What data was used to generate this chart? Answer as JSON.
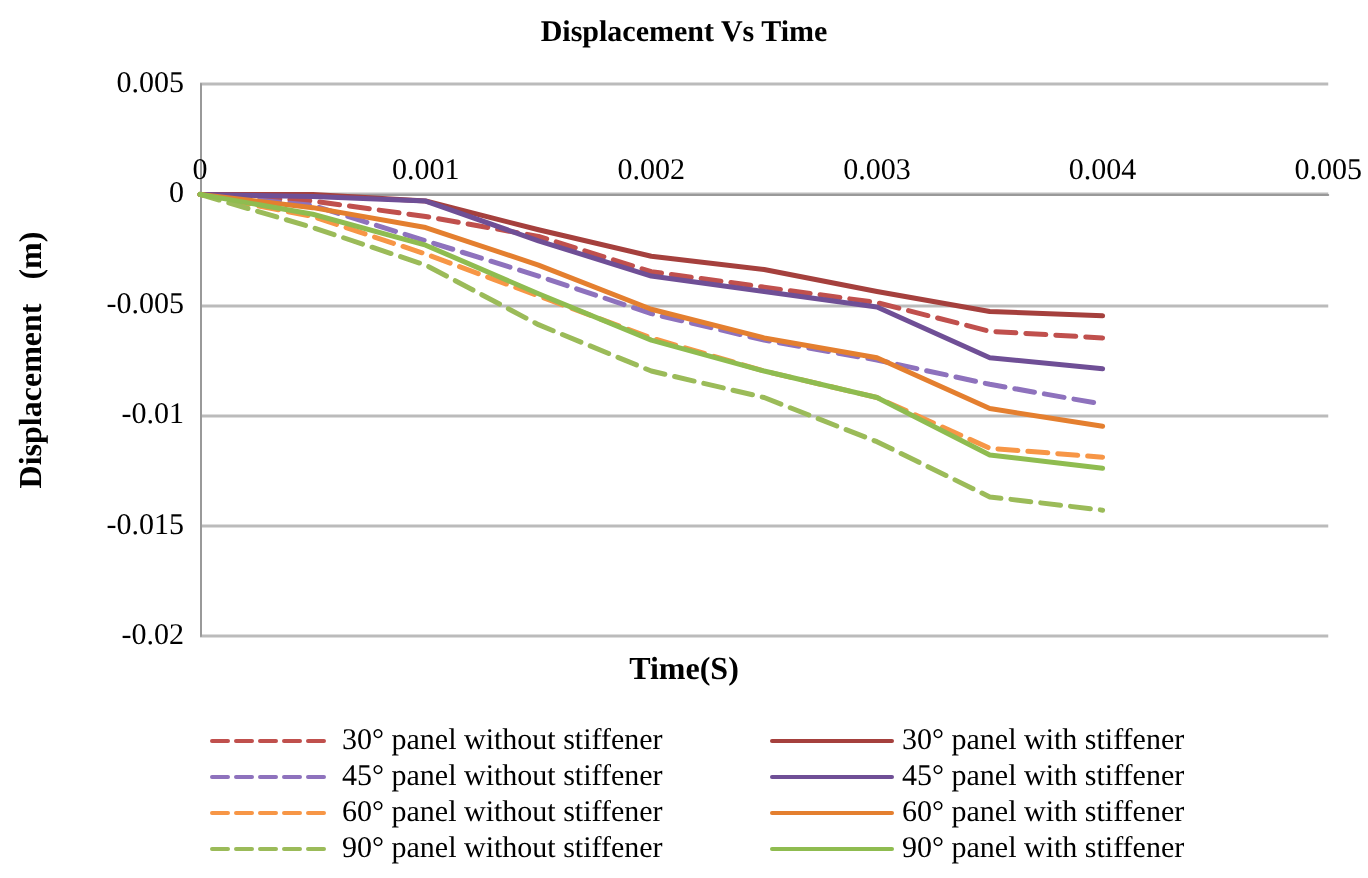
{
  "chart_data": {
    "type": "line",
    "title": "Displacement Vs Time",
    "xlabel": "Time(S)",
    "ylabel": "Displacement   (m)",
    "x": [
      0,
      0.0005,
      0.001,
      0.0015,
      0.002,
      0.0025,
      0.003,
      0.0035,
      0.004
    ],
    "xlim": [
      0,
      0.005
    ],
    "xticks": [
      0,
      0.001,
      0.002,
      0.003,
      0.004,
      0.005
    ],
    "ylim": [
      -0.02,
      0.005
    ],
    "yticks": [
      -0.02,
      -0.015,
      -0.01,
      -0.005,
      0,
      0.005
    ],
    "grid": "y",
    "legend": "bottom",
    "marker": "none",
    "series": [
      {
        "name": "30° panel without stiffener",
        "color": "#c0504d",
        "line_style": "dashed",
        "values": [
          0,
          -0.0003,
          -0.001,
          -0.0019,
          -0.0035,
          -0.0042,
          -0.0049,
          -0.0062,
          -0.0065
        ]
      },
      {
        "name": "30° panel with stiffener",
        "color": "#a5403d",
        "line_style": "solid",
        "values": [
          0,
          0,
          -0.0003,
          -0.0016,
          -0.0028,
          -0.0034,
          -0.0044,
          -0.0053,
          -0.0055
        ]
      },
      {
        "name": "45° panel without stiffener",
        "color": "#8e72bd",
        "line_style": "dashed",
        "values": [
          0,
          -0.0005,
          -0.0021,
          -0.0037,
          -0.0054,
          -0.0066,
          -0.0075,
          -0.0086,
          -0.0095
        ]
      },
      {
        "name": "45° panel with stiffener",
        "color": "#6f4f96",
        "line_style": "solid",
        "values": [
          0,
          -0.0001,
          -0.0003,
          -0.0021,
          -0.0037,
          -0.0044,
          -0.0051,
          -0.0074,
          -0.0079
        ]
      },
      {
        "name": "60° panel without stiffener",
        "color": "#f79646",
        "line_style": "dashed",
        "values": [
          0,
          -0.001,
          -0.0027,
          -0.0046,
          -0.0065,
          -0.008,
          -0.0092,
          -0.0115,
          -0.0119
        ]
      },
      {
        "name": "60° panel with stiffener",
        "color": "#e47f2f",
        "line_style": "solid",
        "values": [
          0,
          -0.0006,
          -0.0015,
          -0.0032,
          -0.0052,
          -0.0065,
          -0.0074,
          -0.0097,
          -0.0105
        ]
      },
      {
        "name": "90° panel without stiffener",
        "color": "#9bbb59",
        "line_style": "dashed",
        "values": [
          0,
          -0.0015,
          -0.0032,
          -0.0059,
          -0.008,
          -0.0092,
          -0.0112,
          -0.0137,
          -0.0143
        ]
      },
      {
        "name": "90° panel with stiffener",
        "color": "#8fbc50",
        "line_style": "solid",
        "values": [
          0,
          -0.0009,
          -0.0023,
          -0.0045,
          -0.0066,
          -0.008,
          -0.0092,
          -0.0118,
          -0.0124
        ]
      }
    ]
  }
}
